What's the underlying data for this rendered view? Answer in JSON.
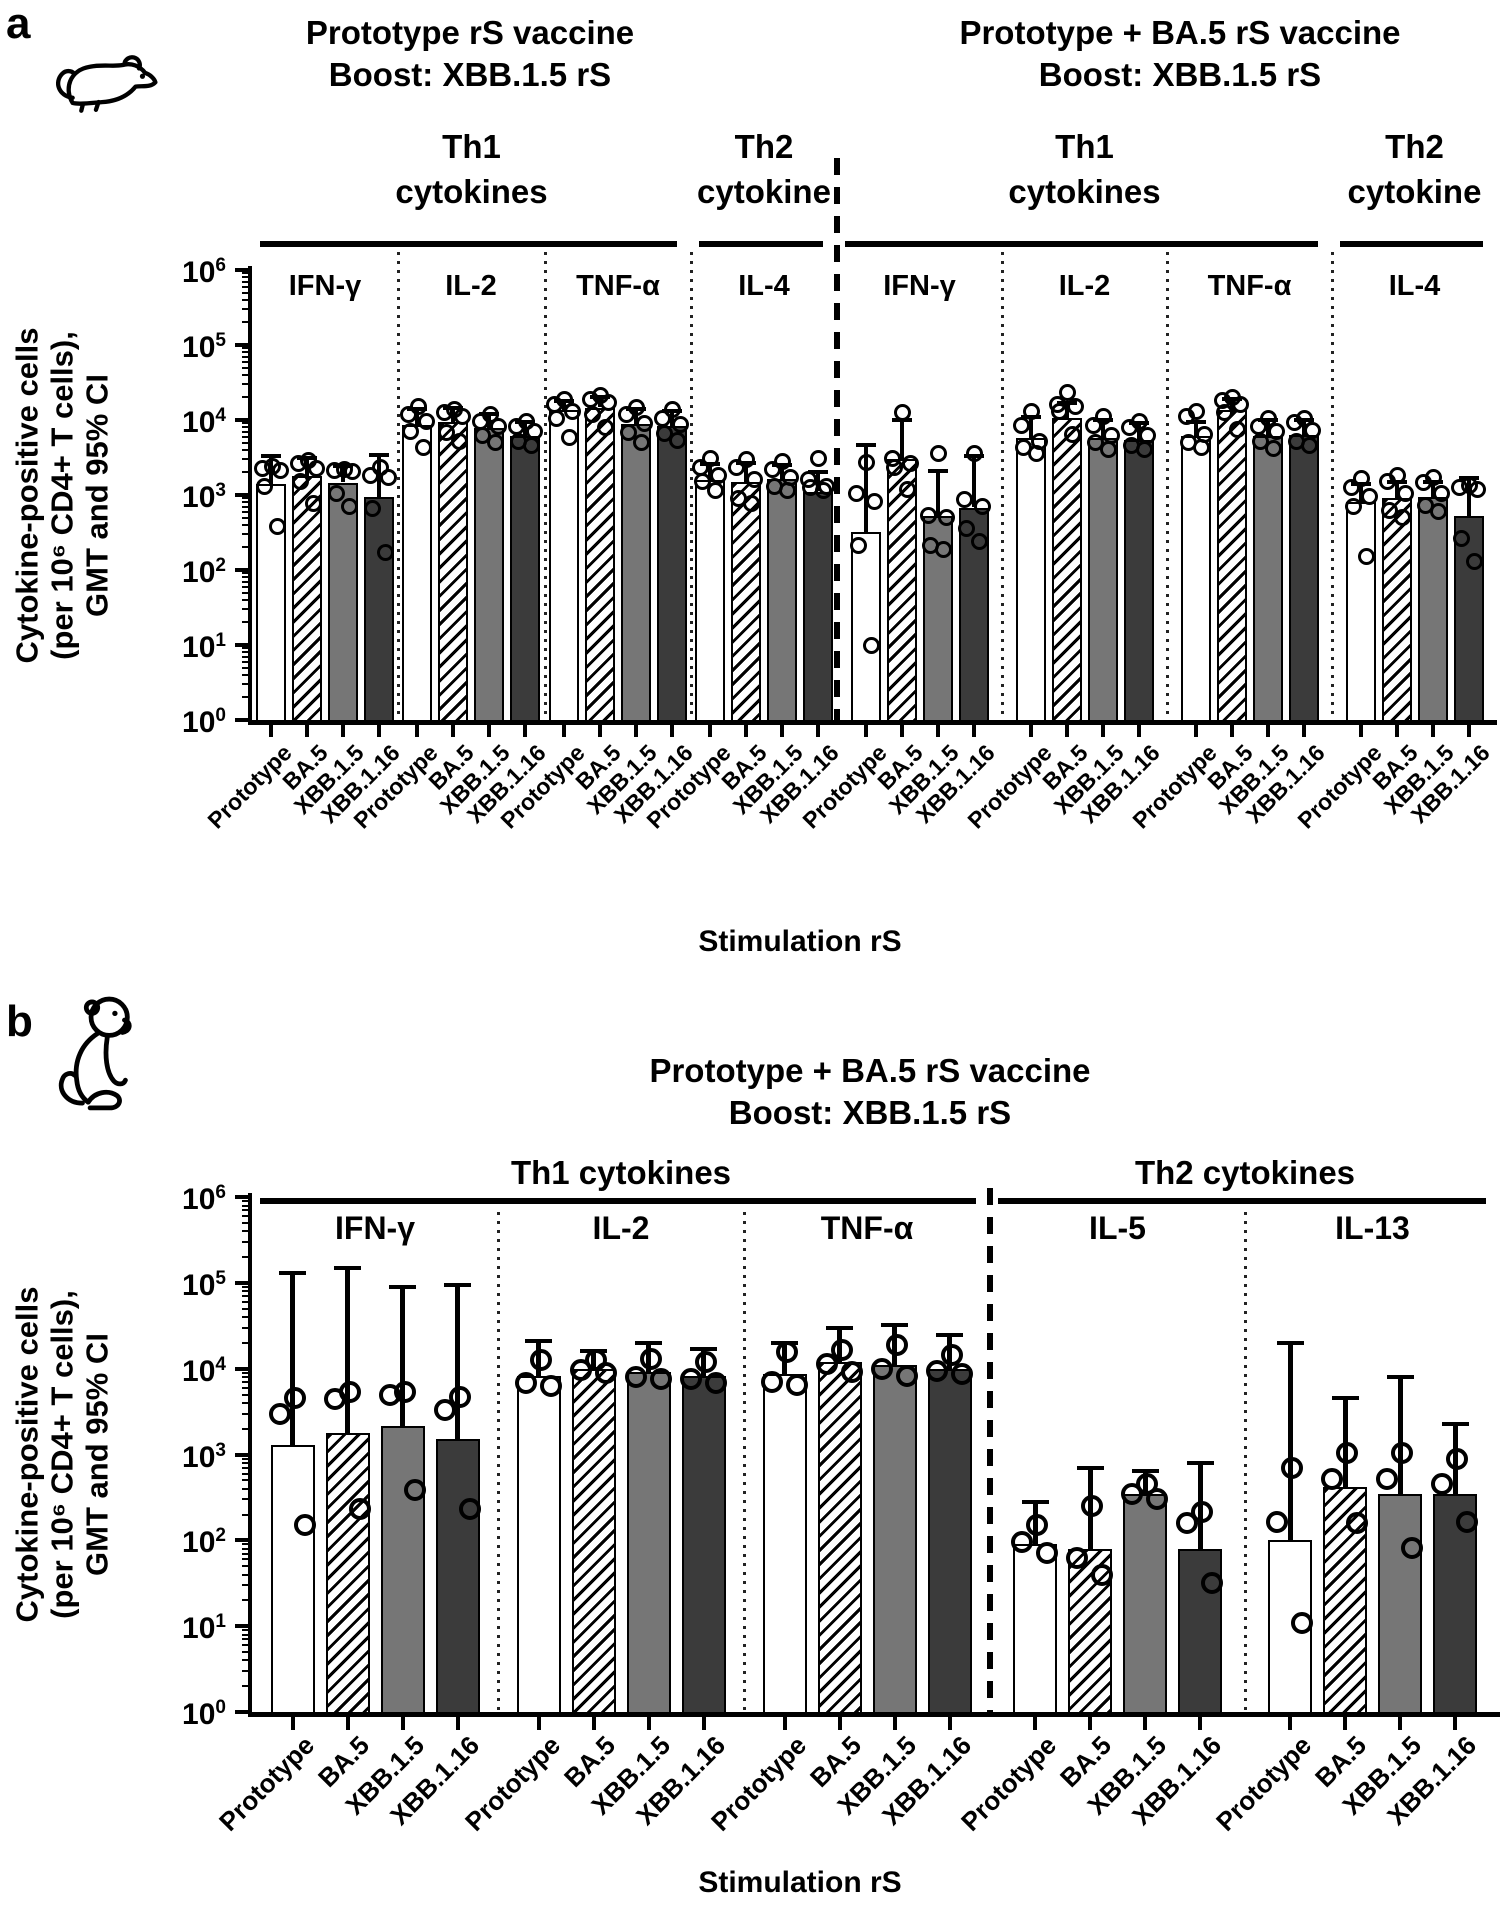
{
  "ui": {
    "panel_a": {
      "panel_letter": "a",
      "animal_icon": "mouse-icon"
    },
    "panel_b": {
      "panel_letter": "b",
      "animal_icon": "monkey-icon"
    }
  },
  "chart_data": [
    {
      "id": "panel-a",
      "type": "bar",
      "scale": "log10",
      "ylim": [
        1,
        1000000
      ],
      "y_tick_exponents": [
        0,
        1,
        2,
        3,
        4,
        5,
        6
      ],
      "grid": false,
      "xlabel": "Stimulation rS",
      "ylabel_lines": [
        "Cytokine-positive cells",
        "(per 10⁶ CD4+ T cells),",
        "GMT and 95% CI"
      ],
      "titles": [
        [
          "Prototype rS vaccine",
          "Boost: XBB.1.5 rS"
        ],
        [
          "Prototype + BA.5 rS vaccine",
          "Boost: XBB.1.5 rS"
        ]
      ],
      "categories": [
        "Prototype",
        "BA.5",
        "XBB.1.5",
        "XBB.1.16"
      ],
      "bar_styles": {
        "Prototype": "white",
        "BA.5": "hatched",
        "XBB.1.5": "gray",
        "XBB.1.16": "dark"
      },
      "colors": {
        "bar_gray": "#767676",
        "bar_dark": "#3b3b3b",
        "ink": "#000000",
        "hatch": "black-diagonal-on-white"
      },
      "sections": [
        {
          "lines": [
            "Th1",
            "cytokines"
          ],
          "groups": [
            0,
            2
          ]
        },
        {
          "lines": [
            "Th2",
            "cytokine"
          ],
          "groups": [
            3,
            3
          ]
        },
        {
          "lines": [
            "Th1",
            "cytokines"
          ],
          "groups": [
            4,
            6
          ]
        },
        {
          "lines": [
            "Th2",
            "cytokine"
          ],
          "groups": [
            7,
            7
          ]
        }
      ],
      "heavy_divider_after_group": 3,
      "groups": [
        {
          "cytokine": "IFN-γ",
          "bars": [
            {
              "stim": "Prototype",
              "gmt": 1400,
              "ci_hi": 3300,
              "points": [
                2400,
                2250,
                2100,
                1300,
                380
              ]
            },
            {
              "stim": "BA.5",
              "gmt": 1800,
              "ci_hi": 3100,
              "points": [
                2900,
                2600,
                2250,
                1500,
                760
              ]
            },
            {
              "stim": "XBB.1.5",
              "gmt": 1450,
              "ci_hi": 2400,
              "points": [
                2200,
                2150,
                2050,
                1050,
                700
              ]
            },
            {
              "stim": "XBB.1.16",
              "gmt": 950,
              "ci_hi": 3400,
              "points": [
                2300,
                1800,
                1700,
                660,
                170
              ]
            }
          ]
        },
        {
          "cytokine": "IL-2",
          "bars": [
            {
              "stim": "Prototype",
              "gmt": 8500,
              "ci_hi": 14000,
              "points": [
                15000,
                12000,
                9500,
                7000,
                4300
              ]
            },
            {
              "stim": "BA.5",
              "gmt": 9500,
              "ci_hi": 14500,
              "points": [
                14000,
                12500,
                11000,
                6800,
                5200
              ]
            },
            {
              "stim": "XBB.1.5",
              "gmt": 7800,
              "ci_hi": 12000,
              "points": [
                12000,
                9500,
                8200,
                6200,
                5000
              ]
            },
            {
              "stim": "XBB.1.16",
              "gmt": 6200,
              "ci_hi": 9500,
              "points": [
                9500,
                8200,
                7000,
                5200,
                4600
              ]
            }
          ]
        },
        {
          "cytokine": "TNF-α",
          "bars": [
            {
              "stim": "Prototype",
              "gmt": 13500,
              "ci_hi": 18000,
              "points": [
                19000,
                16000,
                13000,
                10500,
                5800
              ]
            },
            {
              "stim": "BA.5",
              "gmt": 14500,
              "ci_hi": 20000,
              "points": [
                21000,
                19000,
                17000,
                12000,
                8000
              ]
            },
            {
              "stim": "XBB.1.5",
              "gmt": 8800,
              "ci_hi": 14000,
              "points": [
                14500,
                12000,
                9000,
                6800,
                5000
              ]
            },
            {
              "stim": "XBB.1.16",
              "gmt": 8200,
              "ci_hi": 13000,
              "points": [
                14000,
                10500,
                8800,
                6600,
                5400
              ]
            }
          ]
        },
        {
          "cytokine": "IL-4",
          "bars": [
            {
              "stim": "Prototype",
              "gmt": 1600,
              "ci_hi": 2600,
              "points": [
                3100,
                2300,
                1800,
                1500,
                1150
              ]
            },
            {
              "stim": "BA.5",
              "gmt": 1500,
              "ci_hi": 2700,
              "points": [
                2950,
                2300,
                1600,
                900,
                780
              ]
            },
            {
              "stim": "XBB.1.5",
              "gmt": 1650,
              "ci_hi": 2500,
              "points": [
                2800,
                2200,
                1700,
                1300,
                1150
              ]
            },
            {
              "stim": "XBB.1.16",
              "gmt": 1100,
              "ci_hi": 2000,
              "points": [
                3100,
                1600,
                1300,
                1250,
                1150
              ]
            }
          ]
        },
        {
          "cytokine": "IFN-γ",
          "bars": [
            {
              "stim": "Prototype",
              "gmt": 320,
              "ci_hi": 4600,
              "points": [
                2700,
                1050,
                820,
                210,
                10
              ]
            },
            {
              "stim": "BA.5",
              "gmt": 3000,
              "ci_hi": 10000,
              "points": [
                12500,
                3100,
                2600,
                2300,
                1200
              ]
            },
            {
              "stim": "XBB.1.5",
              "gmt": 520,
              "ci_hi": 2100,
              "points": [
                3600,
                540,
                500,
                215,
                185
              ]
            },
            {
              "stim": "XBB.1.16",
              "gmt": 680,
              "ci_hi": 3300,
              "points": [
                3600,
                880,
                700,
                360,
                240
              ]
            }
          ]
        },
        {
          "cytokine": "IL-2",
          "bars": [
            {
              "stim": "Prototype",
              "gmt": 5800,
              "ci_hi": 11000,
              "points": [
                13000,
                8500,
                5200,
                4300,
                3600
              ]
            },
            {
              "stim": "BA.5",
              "gmt": 10500,
              "ci_hi": 17000,
              "points": [
                23000,
                16000,
                15000,
                13000,
                6500
              ]
            },
            {
              "stim": "XBB.1.5",
              "gmt": 5800,
              "ci_hi": 10000,
              "points": [
                11000,
                8500,
                6200,
                5000,
                4100
              ]
            },
            {
              "stim": "XBB.1.16",
              "gmt": 5400,
              "ci_hi": 9000,
              "points": [
                9500,
                8000,
                6200,
                4600,
                4000
              ]
            }
          ]
        },
        {
          "cytokine": "TNF-α",
          "bars": [
            {
              "stim": "Prototype",
              "gmt": 6200,
              "ci_hi": 9500,
              "points": [
                13000,
                11000,
                6500,
                5000,
                4300
              ]
            },
            {
              "stim": "BA.5",
              "gmt": 13500,
              "ci_hi": 19000,
              "points": [
                20000,
                18000,
                16000,
                12500,
                7500
              ]
            },
            {
              "stim": "XBB.1.5",
              "gmt": 6200,
              "ci_hi": 10000,
              "points": [
                10500,
                8200,
                7000,
                5200,
                4200
              ]
            },
            {
              "stim": "XBB.1.16",
              "gmt": 6400,
              "ci_hi": 10000,
              "points": [
                10500,
                9200,
                7200,
                5200,
                4600
              ]
            }
          ]
        },
        {
          "cytokine": "IL-4",
          "bars": [
            {
              "stim": "Prototype",
              "gmt": 800,
              "ci_hi": 1400,
              "points": [
                1650,
                1250,
                950,
                700,
                150
              ]
            },
            {
              "stim": "BA.5",
              "gmt": 900,
              "ci_hi": 1500,
              "points": [
                1800,
                1500,
                1050,
                620,
                500
              ]
            },
            {
              "stim": "XBB.1.5",
              "gmt": 950,
              "ci_hi": 1500,
              "points": [
                1700,
                1450,
                1050,
                720,
                600
              ]
            },
            {
              "stim": "XBB.1.16",
              "gmt": 520,
              "ci_hi": 1700,
              "points": [
                1350,
                1250,
                1200,
                260,
                130
              ]
            }
          ]
        }
      ]
    },
    {
      "id": "panel-b",
      "type": "bar",
      "scale": "log10",
      "ylim": [
        1,
        1000000
      ],
      "y_tick_exponents": [
        0,
        1,
        2,
        3,
        4,
        5,
        6
      ],
      "grid": false,
      "xlabel": "Stimulation rS",
      "ylabel_lines": [
        "Cytokine-positive cells",
        "(per 10⁶ CD4+ T cells),",
        "GMT and 95% CI"
      ],
      "titles": [
        [
          "Prototype + BA.5 rS vaccine",
          "Boost: XBB.1.5 rS"
        ]
      ],
      "categories": [
        "Prototype",
        "BA.5",
        "XBB.1.5",
        "XBB.1.16"
      ],
      "bar_styles": {
        "Prototype": "white",
        "BA.5": "hatched",
        "XBB.1.5": "gray",
        "XBB.1.16": "dark"
      },
      "colors": {
        "bar_gray": "#767676",
        "bar_dark": "#3b3b3b",
        "ink": "#000000",
        "hatch": "black-diagonal-on-white"
      },
      "sections": [
        {
          "lines": [
            "Th1 cytokines"
          ],
          "groups": [
            0,
            2
          ]
        },
        {
          "lines": [
            "Th2 cytokines"
          ],
          "groups": [
            3,
            4
          ]
        }
      ],
      "heavy_divider_after_group": 2,
      "groups": [
        {
          "cytokine": "IFN-γ",
          "bars": [
            {
              "stim": "Prototype",
              "gmt": 1300,
              "ci_hi": 130000,
              "points": [
                4600,
                3000,
                150
              ]
            },
            {
              "stim": "BA.5",
              "gmt": 1800,
              "ci_hi": 150000,
              "points": [
                5300,
                4500,
                230
              ]
            },
            {
              "stim": "XBB.1.5",
              "gmt": 2150,
              "ci_hi": 90000,
              "points": [
                5300,
                4900,
                390
              ]
            },
            {
              "stim": "XBB.1.16",
              "gmt": 1500,
              "ci_hi": 95000,
              "points": [
                4700,
                3300,
                230
              ]
            }
          ]
        },
        {
          "cytokine": "IL-2",
          "bars": [
            {
              "stim": "Prototype",
              "gmt": 8300,
              "ci_hi": 21000,
              "points": [
                12800,
                6800,
                6300
              ]
            },
            {
              "stim": "BA.5",
              "gmt": 10000,
              "ci_hi": 16000,
              "points": [
                12800,
                9600,
                9000
              ]
            },
            {
              "stim": "XBB.1.5",
              "gmt": 9200,
              "ci_hi": 20000,
              "points": [
                13000,
                8000,
                7700
              ]
            },
            {
              "stim": "XBB.1.16",
              "gmt": 8300,
              "ci_hi": 17000,
              "points": [
                12000,
                7600,
                6900
              ]
            }
          ]
        },
        {
          "cytokine": "TNF-α",
          "bars": [
            {
              "stim": "Prototype",
              "gmt": 8800,
              "ci_hi": 20000,
              "points": [
                15500,
                7000,
                6400
              ]
            },
            {
              "stim": "BA.5",
              "gmt": 12000,
              "ci_hi": 30000,
              "points": [
                16500,
                11500,
                9200
              ]
            },
            {
              "stim": "XBB.1.5",
              "gmt": 11000,
              "ci_hi": 32000,
              "points": [
                19000,
                10000,
                8200
              ]
            },
            {
              "stim": "XBB.1.16",
              "gmt": 10000,
              "ci_hi": 25000,
              "points": [
                14500,
                9500,
                8700
              ]
            }
          ]
        },
        {
          "cytokine": "IL-5",
          "bars": [
            {
              "stim": "Prototype",
              "gmt": 90,
              "ci_hi": 280,
              "points": [
                150,
                95,
                72
              ]
            },
            {
              "stim": "BA.5",
              "gmt": 80,
              "ci_hi": 700,
              "points": [
                250,
                62,
                40
              ]
            },
            {
              "stim": "XBB.1.5",
              "gmt": 350,
              "ci_hi": 650,
              "points": [
                460,
                350,
                300
              ]
            },
            {
              "stim": "XBB.1.16",
              "gmt": 80,
              "ci_hi": 800,
              "points": [
                215,
                160,
                32
              ]
            }
          ]
        },
        {
          "cytokine": "IL-13",
          "bars": [
            {
              "stim": "Prototype",
              "gmt": 100,
              "ci_hi": 20000,
              "points": [
                700,
                165,
                11
              ]
            },
            {
              "stim": "BA.5",
              "gmt": 420,
              "ci_hi": 4600,
              "points": [
                1050,
                520,
                158
              ]
            },
            {
              "stim": "XBB.1.5",
              "gmt": 350,
              "ci_hi": 8000,
              "points": [
                1050,
                520,
                82
              ]
            },
            {
              "stim": "XBB.1.16",
              "gmt": 350,
              "ci_hi": 2300,
              "points": [
                900,
                460,
                165
              ]
            }
          ]
        }
      ]
    }
  ]
}
